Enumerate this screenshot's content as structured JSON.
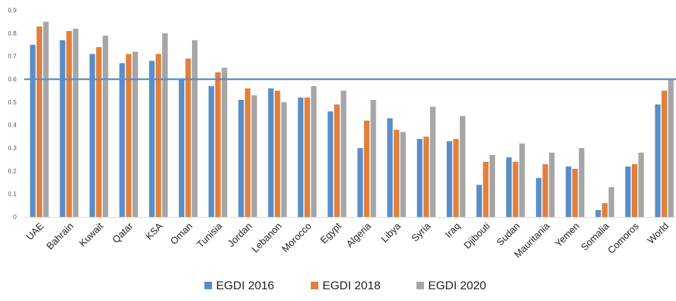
{
  "chart_data": {
    "type": "bar",
    "categories": [
      "UAE",
      "Bahrain",
      "Kuwait",
      "Qatar",
      "KSA",
      "Oman",
      "Tunisia",
      "Jordan",
      "Lebanon",
      "Morocco",
      "Egypt",
      "Algeria",
      "Libya",
      "Syria",
      "Iraq",
      "Djibouti",
      "Sudan",
      "Mauritania",
      "Yemen",
      "Somalia",
      "Comoros",
      "World"
    ],
    "series": [
      {
        "name": "EGDI 2016",
        "color": "#5b8ec8",
        "values": [
          0.75,
          0.77,
          0.71,
          0.67,
          0.68,
          0.6,
          0.57,
          0.51,
          0.56,
          0.52,
          0.46,
          0.3,
          0.43,
          0.34,
          0.33,
          0.14,
          0.26,
          0.17,
          0.22,
          0.03,
          0.22,
          0.49
        ]
      },
      {
        "name": "EGDI 2018",
        "color": "#e1803c",
        "values": [
          0.83,
          0.81,
          0.74,
          0.71,
          0.71,
          0.69,
          0.63,
          0.56,
          0.55,
          0.52,
          0.49,
          0.42,
          0.38,
          0.35,
          0.34,
          0.24,
          0.24,
          0.23,
          0.21,
          0.06,
          0.23,
          0.55
        ]
      },
      {
        "name": "EGDI 2020",
        "color": "#a6a6a6",
        "values": [
          0.85,
          0.82,
          0.79,
          0.72,
          0.8,
          0.77,
          0.65,
          0.53,
          0.5,
          0.57,
          0.55,
          0.51,
          0.37,
          0.48,
          0.44,
          0.27,
          0.32,
          0.28,
          0.3,
          0.13,
          0.28,
          0.6
        ]
      }
    ],
    "reference_line": {
      "value": 0.6,
      "color": "#5b8ec8"
    },
    "ylim": [
      0,
      0.9
    ],
    "yticks": [
      "0",
      "0.1",
      "0.2",
      "0.3",
      "0.4",
      "0.5",
      "0.6",
      "0.7",
      "0.8",
      "0.9"
    ],
    "legend_position": "bottom",
    "grid": false
  }
}
